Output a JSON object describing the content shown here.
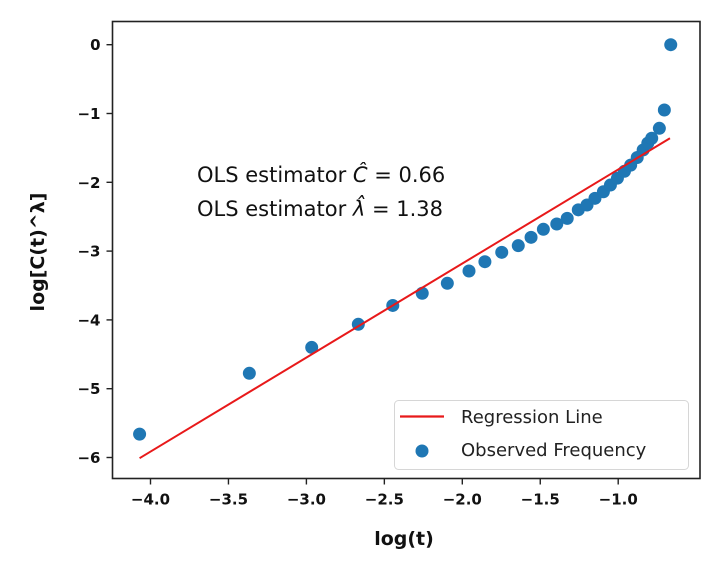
{
  "chart_data": {
    "type": "scatter",
    "title": "",
    "xlabel": "log(t)",
    "ylabel": "log[C(t)^λ]",
    "xlim": [
      -4.25,
      -0.52
    ],
    "ylim": [
      -6.3,
      0.33
    ],
    "xticks": [
      -4.0,
      -3.5,
      -3.0,
      -2.5,
      -2.0,
      -1.5,
      -1.0
    ],
    "xtick_labels": [
      "−4.0",
      "−3.5",
      "−3.0",
      "−2.5",
      "−2.0",
      "−1.5",
      "−1.0"
    ],
    "yticks": [
      0,
      -1,
      -2,
      -3,
      -4,
      -5,
      -6
    ],
    "ytick_labels": [
      "0",
      "−1",
      "−2",
      "−3",
      "−4",
      "−5",
      "−6"
    ],
    "grid": false,
    "legend_position": "lower-right",
    "series": [
      {
        "name": "Regression Line",
        "kind": "line",
        "color": "#e8191a",
        "x": [
          -4.07,
          -0.668
        ],
        "y": [
          -6.01,
          -1.36
        ]
      },
      {
        "name": "Observed Frequency",
        "kind": "scatter",
        "color": "#1f77b4",
        "x": [
          -4.07,
          -3.366,
          -2.966,
          -2.667,
          -2.446,
          -2.257,
          -2.096,
          -1.957,
          -1.855,
          -1.747,
          -1.641,
          -1.559,
          -1.48,
          -1.394,
          -1.327,
          -1.256,
          -1.2,
          -1.149,
          -1.095,
          -1.05,
          -1.005,
          -0.96,
          -0.92,
          -0.878,
          -0.84,
          -0.81,
          -0.785,
          -0.736,
          -0.704,
          -0.663
        ],
        "y": [
          -5.66,
          -4.776,
          -4.4,
          -4.064,
          -3.79,
          -3.613,
          -3.468,
          -3.289,
          -3.154,
          -3.018,
          -2.921,
          -2.8,
          -2.683,
          -2.606,
          -2.524,
          -2.4,
          -2.33,
          -2.233,
          -2.137,
          -2.04,
          -1.94,
          -1.84,
          -1.75,
          -1.64,
          -1.53,
          -1.43,
          -1.36,
          -1.215,
          -0.949,
          0.0
        ]
      }
    ],
    "annotations": [
      {
        "text_prefix": "OLS estimator ",
        "symbol": "Ĉ",
        "text_suffix": " = 0.66"
      },
      {
        "text_prefix": "OLS estimator ",
        "symbol": "λ̂",
        "text_suffix": " = 1.38"
      }
    ],
    "legend": [
      "Regression Line",
      "Observed Frequency"
    ]
  }
}
